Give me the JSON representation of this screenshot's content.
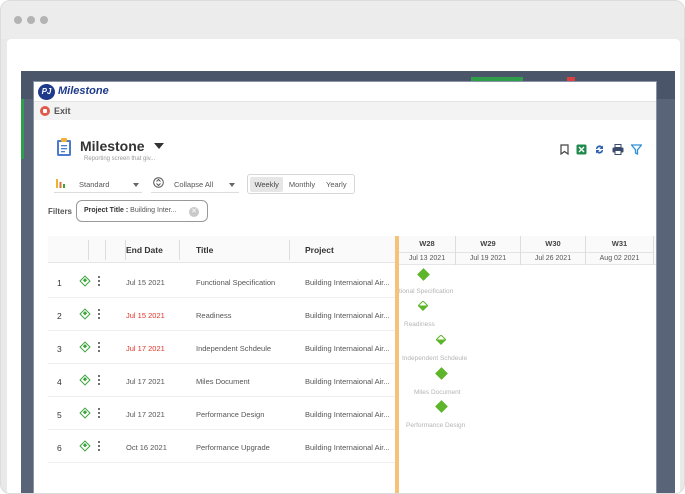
{
  "app": {
    "logo_mark": "PJ",
    "logo_name": "Milestone",
    "exit_label": "Exit"
  },
  "header": {
    "title": "Milestone",
    "subtitle": "Reporting screen that giv..."
  },
  "controls": {
    "view_select": "Standard",
    "collapse_select": "Collapse All",
    "timescale": [
      "Weekly",
      "Monthly",
      "Yearly"
    ],
    "timescale_active": "Weekly"
  },
  "filters": {
    "label": "Filters",
    "chip_key": "Project Title :",
    "chip_value": "Building Inter..."
  },
  "grid": {
    "headers": {
      "end_date": "End Date",
      "title": "Title",
      "project": "Project"
    },
    "rows": [
      {
        "num": "1",
        "end_date": "Jul 15 2021",
        "overdue": false,
        "title": "Functional Specification",
        "project": "Building Internaional Air..."
      },
      {
        "num": "2",
        "end_date": "Jul 15 2021",
        "overdue": true,
        "title": "Readiness",
        "project": "Building Internaional Air..."
      },
      {
        "num": "3",
        "end_date": "Jul 17 2021",
        "overdue": true,
        "title": "Independent Schdeule",
        "project": "Building Internaional Air..."
      },
      {
        "num": "4",
        "end_date": "Jul 17 2021",
        "overdue": false,
        "title": "Miles Document",
        "project": "Building Internaional Air..."
      },
      {
        "num": "5",
        "end_date": "Jul 17 2021",
        "overdue": false,
        "title": "Performance Design",
        "project": "Building Internaional Air..."
      },
      {
        "num": "6",
        "end_date": "Oct 16 2021",
        "overdue": false,
        "title": "Performance Upgrade",
        "project": "Building Internaional Air..."
      }
    ]
  },
  "gantt": {
    "weeks": [
      {
        "label": "W28",
        "date": "Jul 13 2021"
      },
      {
        "label": "W29",
        "date": "Jul 19 2021"
      },
      {
        "label": "W30",
        "date": "Jul 26 2021"
      },
      {
        "label": "W31",
        "date": "Aug 02 2021"
      }
    ],
    "bar_labels": [
      "tional Specification",
      "Readiness",
      "Independent Schdeule",
      "Miles Document",
      "Performance Design"
    ]
  },
  "colors": {
    "accent_green": "#5db52c",
    "overdue_red": "#e0342a",
    "brand_blue": "#1e3a8a",
    "splitter": "#f5c27a"
  }
}
